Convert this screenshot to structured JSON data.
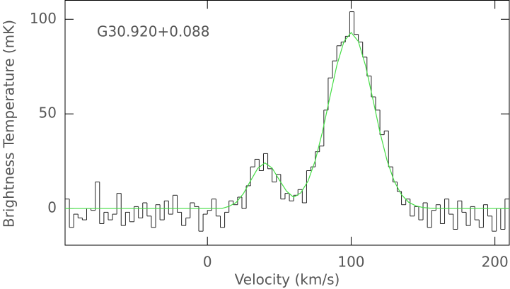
{
  "chart_data": {
    "type": "histogram",
    "annotation": "G30.920+0.088",
    "xlabel": "Velocity (km/s)",
    "ylabel": "Brightness Temperature (mK)",
    "xlim": [
      -99,
      210
    ],
    "ylim": [
      -19.4,
      110
    ],
    "xticks": [
      0,
      100,
      200
    ],
    "yticks": [
      0,
      50,
      100
    ],
    "color": "#222222",
    "bins": [
      -99,
      -96,
      -93,
      -90,
      -87,
      -84,
      -81,
      -78,
      -75,
      -72,
      -69,
      -66,
      -63,
      -60,
      -57,
      -54,
      -51,
      -48,
      -45,
      -42,
      -39,
      -36,
      -33,
      -30,
      -27,
      -24,
      -21,
      -18,
      -15,
      -12,
      -9,
      -6,
      -3,
      0,
      3,
      6,
      9,
      12,
      15,
      18,
      21,
      24,
      27,
      30,
      33,
      36,
      39,
      42,
      45,
      48,
      51,
      54,
      57,
      60,
      63,
      66,
      69,
      72,
      75,
      78,
      81,
      84,
      87,
      90,
      93,
      96,
      99,
      102,
      105,
      108,
      111,
      114,
      117,
      120,
      123,
      126,
      129,
      132,
      135,
      138,
      141,
      144,
      147,
      150,
      153,
      156,
      159,
      162,
      165,
      168,
      171,
      174,
      177,
      180,
      183,
      186,
      189,
      192,
      195,
      198,
      201,
      204,
      207,
      210
    ],
    "values": [
      5,
      -10,
      -3,
      -5,
      -6,
      0,
      -1,
      14,
      -8,
      -2,
      -6,
      -3,
      8,
      -9,
      -2,
      -7,
      1,
      -5,
      3,
      -4,
      -10,
      2,
      -6,
      4,
      -3,
      7,
      -2,
      -9,
      -5,
      3,
      1,
      -12,
      -3,
      -1,
      5,
      -4,
      -10,
      -2,
      4,
      2,
      6,
      0,
      12,
      22,
      26,
      20,
      29,
      21,
      14,
      18,
      5,
      8,
      4,
      7,
      10,
      3,
      20,
      22,
      30,
      33,
      52,
      69,
      78,
      86,
      88,
      91,
      104,
      92,
      88,
      80,
      70,
      59,
      52,
      39,
      41,
      22,
      14,
      9,
      2,
      5,
      -4,
      1,
      -6,
      3,
      -10,
      -1,
      2,
      -8,
      5,
      -3,
      -11,
      4,
      -2,
      -9,
      1,
      -6,
      -10,
      2,
      -4,
      -12,
      0,
      -11,
      5
    ],
    "fit": {
      "type": "line",
      "color": "#44dd44",
      "x": [
        -99,
        -95,
        -90,
        -85,
        -80,
        -75,
        -70,
        -65,
        -60,
        -55,
        -50,
        -45,
        -40,
        -35,
        -30,
        -25,
        -20,
        -15,
        -10,
        -5,
        0,
        5,
        10,
        15,
        20,
        25,
        30,
        35,
        40,
        45,
        50,
        55,
        60,
        65,
        70,
        75,
        80,
        85,
        90,
        95,
        100,
        105,
        110,
        115,
        120,
        125,
        130,
        135,
        140,
        145,
        150,
        155,
        160,
        165,
        170,
        175,
        180,
        185,
        190,
        195,
        200,
        205,
        210
      ],
      "values": [
        0,
        0,
        0,
        0,
        0,
        0,
        0,
        0,
        0,
        0,
        0,
        0,
        0,
        0,
        0,
        0,
        0,
        0,
        0,
        0,
        0,
        0,
        0,
        1.1,
        3.2,
        7.8,
        14.6,
        21.2,
        24.1,
        21.4,
        15.1,
        9.2,
        5.9,
        8.3,
        14.5,
        25.3,
        40.4,
        58.2,
        75.5,
        88.3,
        93,
        88.3,
        75.5,
        58.2,
        40.4,
        25.3,
        14.3,
        7.3,
        3.3,
        1.4,
        0.5,
        0.17,
        0.05,
        0,
        0,
        0,
        0,
        0,
        0,
        0,
        0,
        0,
        0
      ]
    }
  }
}
